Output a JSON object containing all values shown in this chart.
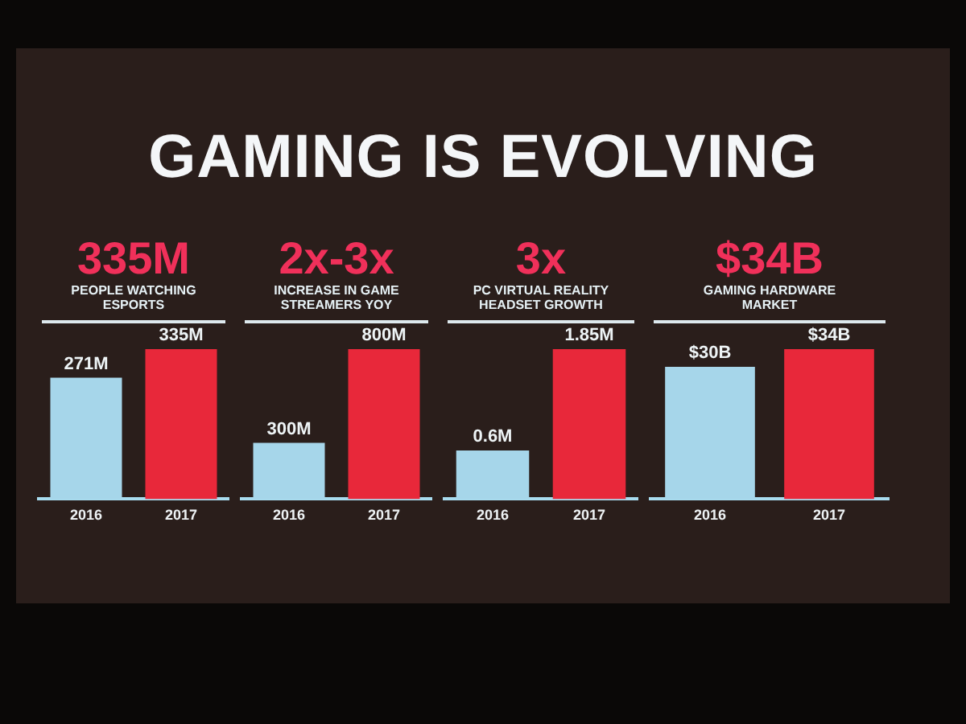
{
  "chart_data": [
    {
      "type": "other",
      "title": "GAMING IS EVOLVING"
    },
    {
      "type": "bar",
      "title": "335M",
      "subtitle": "PEOPLE WATCHING ESPORTS",
      "categories": [
        "2016",
        "2017"
      ],
      "values": [
        271,
        335
      ],
      "colors": [
        "#a6d6ea",
        "#e8283a"
      ],
      "value_labels": [
        "271M",
        "335M"
      ]
    },
    {
      "type": "bar",
      "title": "2x-3x",
      "subtitle": "INCREASE IN GAME STREAMERS YOY",
      "categories": [
        "2016",
        "2017"
      ],
      "values": [
        300,
        800
      ],
      "colors": [
        "#a6d6ea",
        "#e8283a"
      ],
      "value_labels": [
        "300M",
        "800M"
      ]
    },
    {
      "type": "bar",
      "title": "3x",
      "subtitle": "PC VIRTUAL REALITY HEADSET GROWTH",
      "categories": [
        "2016",
        "2017"
      ],
      "values": [
        0.6,
        1.85
      ],
      "colors": [
        "#a6d6ea",
        "#e8283a"
      ],
      "value_labels": [
        "0.6M",
        "1.85M"
      ]
    },
    {
      "type": "bar",
      "title": "$34B",
      "subtitle": "GAMING HARDWARE MARKET",
      "categories": [
        "2016",
        "2017"
      ],
      "values": [
        30,
        34
      ],
      "colors": [
        "#a6d6ea",
        "#e8283a"
      ],
      "value_labels": [
        "$30B",
        "$34B"
      ]
    }
  ]
}
